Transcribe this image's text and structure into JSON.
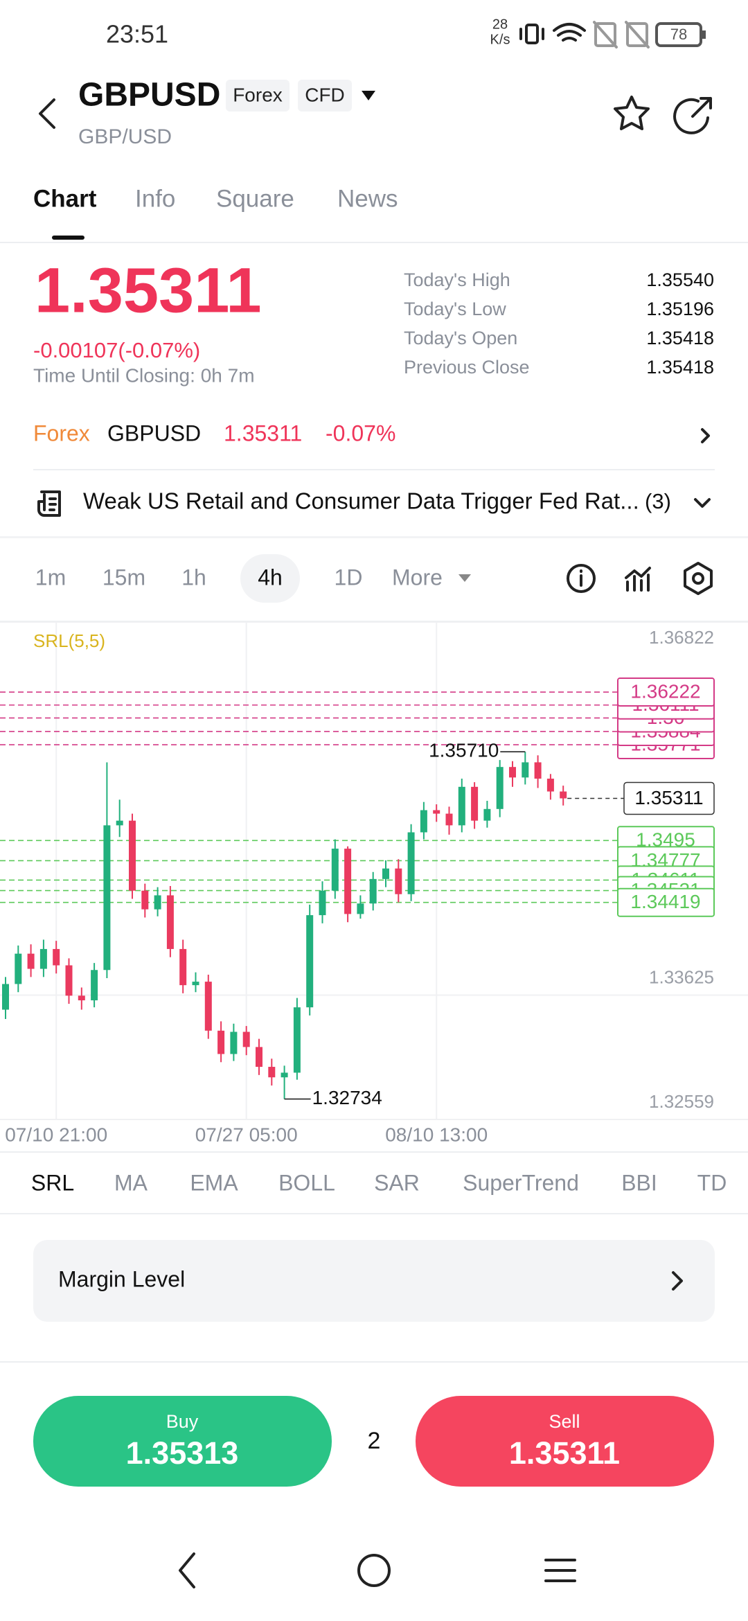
{
  "status_bar": {
    "time": "23:51",
    "speed_value": "28",
    "speed_unit": "K/s",
    "battery": "78"
  },
  "header": {
    "symbol": "GBPUSD",
    "badges": [
      "Forex",
      "CFD"
    ],
    "subtitle": "GBP/USD"
  },
  "tabs": [
    "Chart",
    "Info",
    "Square",
    "News"
  ],
  "quote": {
    "price": "1.35311",
    "change": "-0.00107(-0.07%)",
    "closing": "Time Until Closing: 0h 7m"
  },
  "stats": [
    {
      "label": "Today's High",
      "value": "1.35540"
    },
    {
      "label": "Today's Low",
      "value": "1.35196"
    },
    {
      "label": "Today's Open",
      "value": "1.35418"
    },
    {
      "label": "Previous Close",
      "value": "1.35418"
    }
  ],
  "ticker": {
    "market": "Forex",
    "symbol": "GBPUSD",
    "price": "1.35311",
    "change": "-0.07%"
  },
  "news": {
    "text": "Weak US Retail and Consumer Data Trigger Fed Rat...",
    "count": "(3)"
  },
  "timeframes": [
    "1m",
    "15m",
    "1h",
    "4h",
    "1D",
    "More"
  ],
  "chart_data": {
    "type": "candlestick",
    "indicator_label": "SRL(5,5)",
    "up_color": "#22b07d",
    "down_color": "#ea3a5f",
    "categories": [
      null,
      null,
      null,
      null,
      "07/10 21:00",
      null,
      null,
      null,
      null,
      null,
      null,
      null,
      null,
      null,
      null,
      null,
      null,
      null,
      null,
      "07/27 05:00",
      null,
      null,
      null,
      null,
      null,
      null,
      null,
      null,
      null,
      null,
      null,
      null,
      null,
      null,
      "08/10 13:00",
      null,
      null,
      null,
      null,
      null,
      null,
      null,
      null,
      null,
      null
    ],
    "open": [
      1.335,
      1.3372,
      1.3398,
      1.3385,
      1.3402,
      1.3388,
      1.3362,
      1.3358,
      1.3384,
      1.3508,
      1.3512,
      1.3452,
      1.3436,
      1.3448,
      1.3402,
      1.3371,
      1.3374,
      1.3332,
      1.3312,
      1.3331,
      1.3318,
      1.3301,
      1.3292,
      1.3296,
      1.3352,
      1.3431,
      1.3452,
      1.3488,
      1.3432,
      1.3441,
      1.3462,
      1.3471,
      1.3449,
      1.3502,
      1.3521,
      1.3518,
      1.3508,
      1.3541,
      1.3512,
      1.3522,
      1.3558,
      1.3549,
      1.3562,
      1.3548,
      1.3537
    ],
    "high": [
      1.3378,
      1.3405,
      1.3406,
      1.341,
      1.3409,
      1.3394,
      1.3369,
      1.339,
      1.3562,
      1.353,
      1.3518,
      1.3458,
      1.3455,
      1.3456,
      1.341,
      1.3382,
      1.338,
      1.334,
      1.3338,
      1.3336,
      1.3325,
      1.3308,
      1.3302,
      1.336,
      1.344,
      1.346,
      1.3496,
      1.349,
      1.3448,
      1.3468,
      1.3478,
      1.3479,
      1.3509,
      1.3528,
      1.3526,
      1.3524,
      1.3548,
      1.3545,
      1.3529,
      1.3564,
      1.3563,
      1.3571,
      1.3568,
      1.3552,
      1.3542
    ],
    "low": [
      1.3342,
      1.3365,
      1.3378,
      1.3378,
      1.3381,
      1.3355,
      1.335,
      1.3352,
      1.3377,
      1.3498,
      1.3445,
      1.3429,
      1.343,
      1.3395,
      1.3364,
      1.3365,
      1.3325,
      1.3305,
      1.3306,
      1.3311,
      1.3294,
      1.3285,
      1.32734,
      1.329,
      1.3345,
      1.3424,
      1.3445,
      1.3425,
      1.3428,
      1.3435,
      1.3455,
      1.3442,
      1.3443,
      1.3496,
      1.3511,
      1.35,
      1.3502,
      1.3505,
      1.3506,
      1.3515,
      1.3541,
      1.3543,
      1.354,
      1.353,
      1.3525
    ],
    "close": [
      1.3372,
      1.3398,
      1.3385,
      1.3402,
      1.3388,
      1.3362,
      1.3358,
      1.3384,
      1.3508,
      1.3512,
      1.3452,
      1.3436,
      1.3448,
      1.3402,
      1.3371,
      1.3374,
      1.3332,
      1.3312,
      1.3331,
      1.3318,
      1.3301,
      1.3292,
      1.3296,
      1.3352,
      1.3431,
      1.3452,
      1.3488,
      1.3432,
      1.3441,
      1.3462,
      1.3471,
      1.3449,
      1.3502,
      1.3521,
      1.3518,
      1.3508,
      1.3541,
      1.3512,
      1.3522,
      1.3558,
      1.3549,
      1.3562,
      1.3548,
      1.3537,
      1.35311
    ],
    "ylim": [
      1.32559,
      1.36822
    ],
    "yticks": [
      1.36822,
      1.33625,
      1.32559
    ],
    "grid": true,
    "high_label": {
      "value": 1.3571,
      "label": "1.35710"
    },
    "low_label": 1.32734,
    "last_price": 1.35311,
    "resistance": {
      "color": "#d43a86",
      "values": [
        1.36222,
        1.36111,
        1.36,
        1.35884,
        1.35771
      ]
    },
    "support": {
      "color": "#5cc95a",
      "values": [
        1.3495,
        1.34777,
        1.34611,
        1.34521,
        1.34419
      ]
    }
  },
  "indicators": [
    "SRL",
    "MA",
    "EMA",
    "BOLL",
    "SAR",
    "SuperTrend",
    "BBI",
    "TD"
  ],
  "margin": {
    "label": "Margin Level"
  },
  "trade": {
    "buy_label": "Buy",
    "buy_price": "1.35313",
    "quantity": "2",
    "sell_label": "Sell",
    "sell_price": "1.35311"
  }
}
